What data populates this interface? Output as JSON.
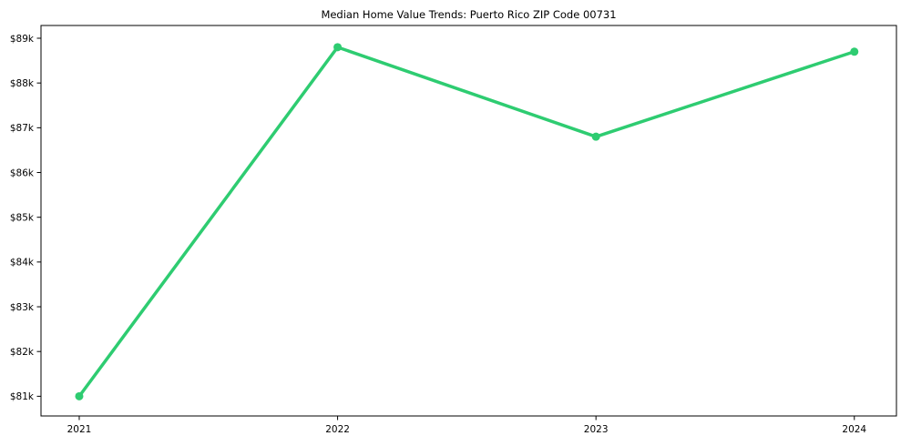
{
  "figure": {
    "background_color": "#ffffff",
    "frame_color": "#000000",
    "text_color": "#000000"
  },
  "chart_data": {
    "type": "line",
    "title": "Median Home Value Trends: Puerto Rico ZIP Code 00731",
    "xlabel": "",
    "ylabel": "",
    "grid": false,
    "legend": null,
    "x": [
      2021,
      2022,
      2023,
      2024
    ],
    "x_tick_labels": [
      "2021",
      "2022",
      "2023",
      "2024"
    ],
    "y_ticks": [
      81000,
      82000,
      83000,
      84000,
      85000,
      86000,
      87000,
      88000,
      89000
    ],
    "y_tick_labels": [
      "$81k",
      "$82k",
      "$83k",
      "$84k",
      "$85k",
      "$86k",
      "$87k",
      "$88k",
      "$89k"
    ],
    "xlim": [
      2020.852,
      2024.163
    ],
    "ylim": [
      80560,
      89285
    ],
    "series": [
      {
        "name": "median-home-value",
        "color": "#2ecc71",
        "marker": "circle",
        "line_width": 3.5,
        "marker_radius": 4.5,
        "values": [
          81000,
          88800,
          86800,
          88700
        ]
      }
    ]
  }
}
